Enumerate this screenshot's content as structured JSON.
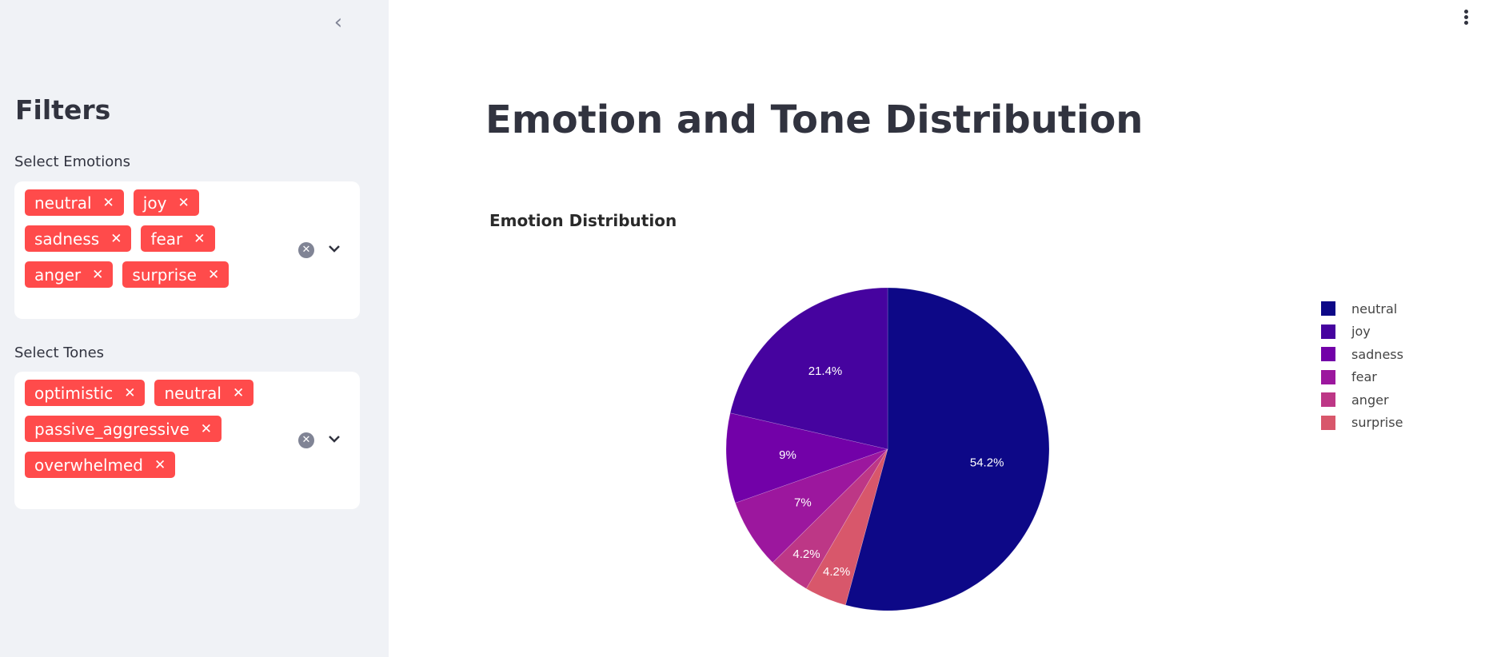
{
  "sidebar": {
    "title": "Filters",
    "emotions": {
      "label": "Select Emotions",
      "selected": [
        "neutral",
        "joy",
        "sadness",
        "fear",
        "anger",
        "surprise"
      ]
    },
    "tones": {
      "label": "Select Tones",
      "selected": [
        "optimistic",
        "neutral",
        "passive_aggressive",
        "overwhelmed"
      ]
    }
  },
  "main": {
    "title": "Emotion and Tone Distribution"
  },
  "chart_data": {
    "type": "pie",
    "title": "Emotion Distribution",
    "labels": [
      "neutral",
      "joy",
      "sadness",
      "fear",
      "anger",
      "surprise"
    ],
    "values": [
      54.2,
      21.4,
      9,
      7,
      4.2,
      4.2
    ],
    "text": [
      "54.2%",
      "21.4%",
      "9%",
      "7%",
      "4.2%",
      "4.2%"
    ],
    "colors": [
      "#0d0887",
      "#46039f",
      "#7201a8",
      "#9c179e",
      "#bd3786",
      "#d8576b"
    ],
    "legend_position": "right"
  }
}
